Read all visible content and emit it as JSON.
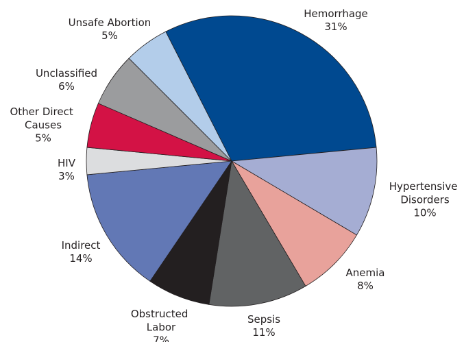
{
  "chart_data": {
    "type": "pie",
    "categories": [
      "Hemorrhage",
      "Hypertensive Disorders",
      "Anemia",
      "Sepsis",
      "Obstructed Labor",
      "Indirect",
      "HIV",
      "Other Direct Causes",
      "Unclassified",
      "Unsafe Abortion"
    ],
    "values": [
      31,
      10,
      8,
      11,
      7,
      14,
      3,
      5,
      6,
      5
    ],
    "value_labels": [
      "31%",
      "10%",
      "8%",
      "11%",
      "7%",
      "14%",
      "3%",
      "5%",
      "6%",
      "5%"
    ],
    "colors": [
      "#004990",
      "#a5add3",
      "#e8a29b",
      "#616364",
      "#231f20",
      "#6278b5",
      "#dcdddf",
      "#d31245",
      "#9b9c9e",
      "#b3cdea"
    ]
  }
}
